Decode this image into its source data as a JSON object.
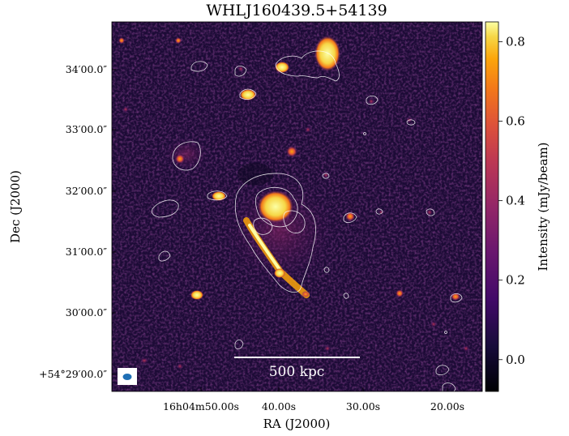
{
  "figure": {
    "title": "WHLJ160439.5+54139",
    "xlabel": "RA (J2000)",
    "ylabel": "Dec (J2000)",
    "colorbar_label": "Intensity (mJy/beam)",
    "scalebar_label": "500 kpc",
    "colormap": "inferno",
    "contour_color": "#ffffff",
    "beam_color": "#1f6fb5"
  },
  "ra_ticks": [
    "16h04m50.00s",
    "40.00s",
    "30.00s",
    "20.00s"
  ],
  "dec_ticks": [
    "34′00.0″",
    "33′00.0″",
    "32′00.0″",
    "31′00.0″",
    "30′00.0″",
    "+54°29′00.0″"
  ],
  "colorbar_ticks": [
    "0.8",
    "0.6",
    "0.4",
    "0.2",
    "0.0"
  ],
  "colorbar_range": [
    -0.08,
    0.85
  ]
}
